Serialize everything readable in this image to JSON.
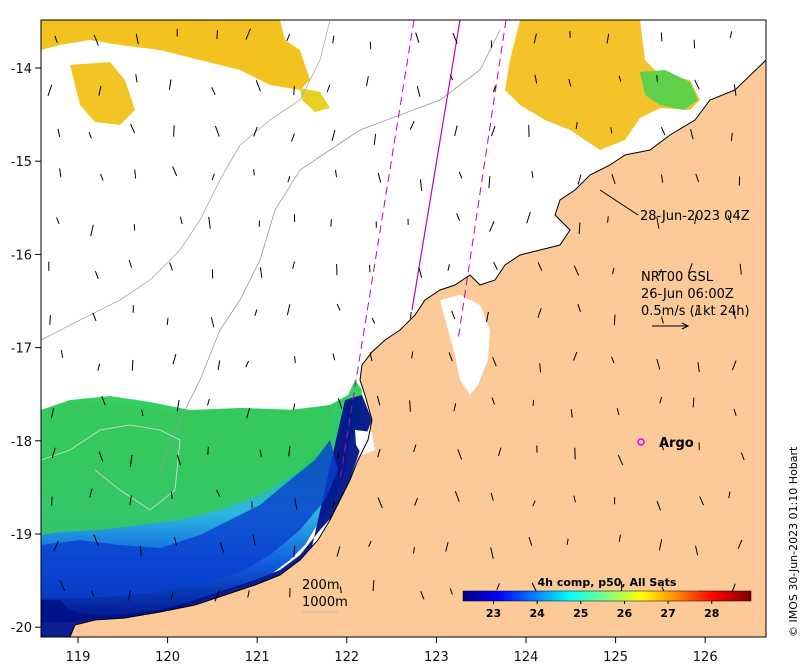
{
  "map": {
    "x_ticks": [
      "119",
      "120",
      "121",
      "122",
      "123",
      "124",
      "125",
      "126"
    ],
    "y_ticks": [
      "-14",
      "-15",
      "-16",
      "-17",
      "-18",
      "-19",
      "-20"
    ],
    "colors": {
      "land": "#fcc999",
      "sea_no_data": "#ffffff",
      "track": "#c000c0",
      "argo_marker": "#e000e0"
    }
  },
  "annotations": {
    "track_date": "28-Jun-2023 04Z",
    "current_product": "NRT00 GSL",
    "current_time": "26-Jun 06:00Z",
    "current_scale": "0.5m/s (1kt 24h)",
    "argo_label": "Argo",
    "contour_200": "200m",
    "contour_1000": "1000m"
  },
  "colorbar": {
    "title": "4h comp, p50, All Sats",
    "ticks": [
      "23",
      "24",
      "25",
      "26",
      "27",
      "28"
    ],
    "range": [
      22.3,
      28.9
    ],
    "colors": [
      "#00007f",
      "#0000ff",
      "#007fff",
      "#00ffff",
      "#7fff7f",
      "#ffff00",
      "#ff7f00",
      "#ff0000",
      "#7f0000"
    ]
  },
  "credit": "© IMOS 30-Jun-2023 01:10 Hobart"
}
